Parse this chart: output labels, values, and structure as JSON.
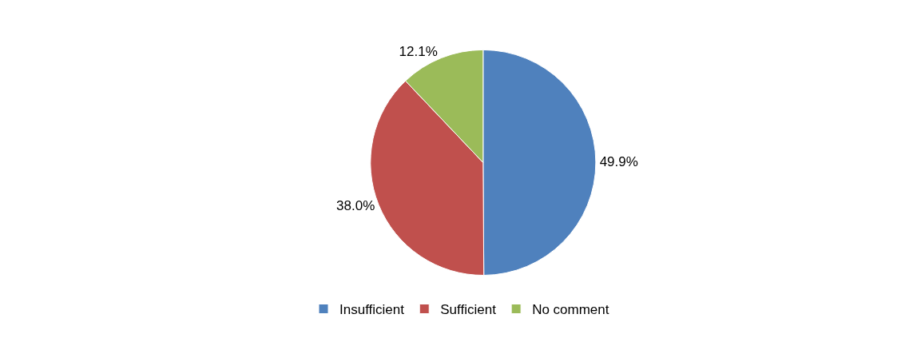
{
  "chart_data": {
    "type": "pie",
    "categories": [
      "Insufficient",
      "Sufficient",
      "No comment"
    ],
    "values": [
      49.9,
      38.0,
      12.1
    ],
    "colors": [
      "#4f81bd",
      "#c0504d",
      "#9bbb59"
    ],
    "value_labels": [
      "49.9%",
      "38.0%",
      "12.1%"
    ],
    "legend": "bottom"
  }
}
